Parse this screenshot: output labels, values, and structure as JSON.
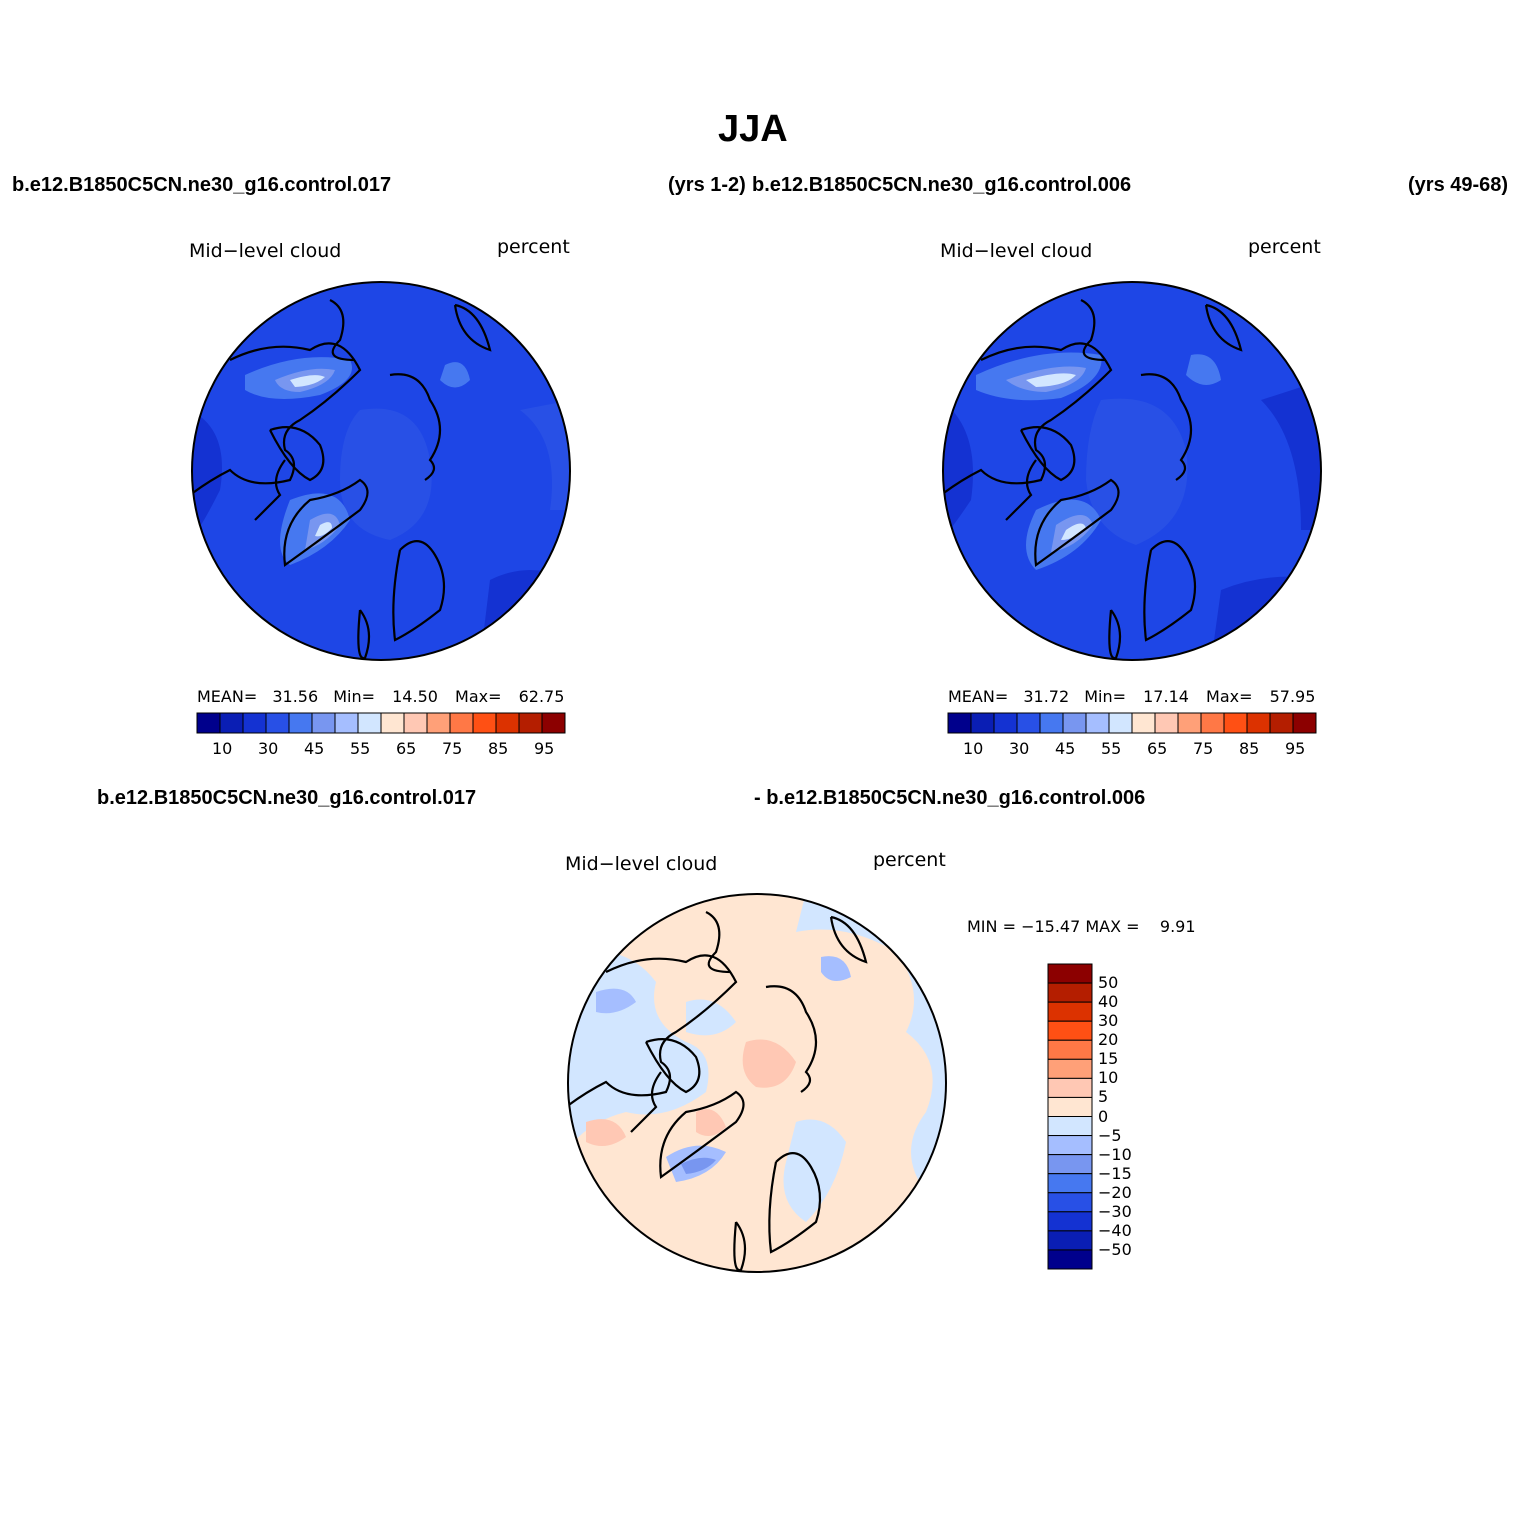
{
  "title": "JJA",
  "header": {
    "case1": "b.e12.B1850C5CN.ne30_g16.control.017",
    "yrs1": "(yrs 1-2)",
    "case2": "b.e12.B1850C5CN.ne30_g16.control.006",
    "yrs2": "(yrs 49-68)"
  },
  "diff_header": {
    "case1": "b.e12.B1850C5CN.ne30_g16.control.017",
    "case2": "- b.e12.B1850C5CN.ne30_g16.control.006"
  },
  "panels": [
    {
      "variable": "Mid−level cloud",
      "units": "percent",
      "mean_label": "MEAN=",
      "mean": "31.56",
      "min_label": "Min=",
      "min": "14.50",
      "max_label": "Max=",
      "max": "62.75"
    },
    {
      "variable": "Mid−level cloud",
      "units": "percent",
      "mean_label": "MEAN=",
      "mean": "31.72",
      "min_label": "Min=",
      "min": "17.14",
      "max_label": "Max=",
      "max": "57.95"
    }
  ],
  "diff_panel": {
    "variable": "Mid−level cloud",
    "units": "percent",
    "minmax": "MIN = −15.47 MAX =    9.91"
  },
  "colorbar": {
    "colors": [
      "#00008c",
      "#0a1eb4",
      "#1432d2",
      "#2850e6",
      "#4678f0",
      "#7896f0",
      "#a5beff",
      "#d2e6ff",
      "#ffe6d2",
      "#ffc8b4",
      "#ffa078",
      "#ff7846",
      "#ff5014",
      "#dc3200",
      "#b41e00",
      "#8c0000"
    ],
    "labels": [
      "10",
      "30",
      "45",
      "55",
      "65",
      "75",
      "85",
      "95"
    ]
  },
  "diff_colorbar": {
    "colors_top_to_bottom": [
      "#8c0000",
      "#b41e00",
      "#dc3200",
      "#ff5014",
      "#ff7846",
      "#ffa078",
      "#ffc8b4",
      "#ffe6d2",
      "#d2e6ff",
      "#a5beff",
      "#7896f0",
      "#4678f0",
      "#2850e6",
      "#1432d2",
      "#0a1eb4",
      "#00008c"
    ],
    "labels": [
      "50",
      "40",
      "30",
      "20",
      "15",
      "10",
      "5",
      "0",
      "−5",
      "−10",
      "−15",
      "−20",
      "−30",
      "−40",
      "−50"
    ]
  }
}
